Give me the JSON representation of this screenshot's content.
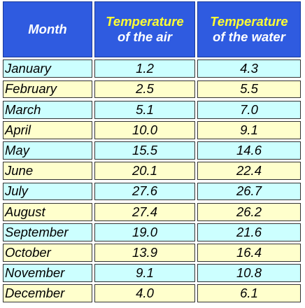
{
  "header": {
    "month": "Month",
    "air_line1": "Temperature",
    "air_line2": "of the air",
    "water_line1": "Temperature",
    "water_line2": "of the water"
  },
  "rows": [
    {
      "month": "January",
      "air": "1.2",
      "water": "4.3"
    },
    {
      "month": "February",
      "air": "2.5",
      "water": "5.5"
    },
    {
      "month": "March",
      "air": "5.1",
      "water": "7.0"
    },
    {
      "month": "April",
      "air": "10.0",
      "water": "9.1"
    },
    {
      "month": "May",
      "air": "15.5",
      "water": "14.6"
    },
    {
      "month": "June",
      "air": "20.1",
      "water": "22.4"
    },
    {
      "month": "July",
      "air": "27.6",
      "water": "26.7"
    },
    {
      "month": "August",
      "air": "27.4",
      "water": "26.2"
    },
    {
      "month": "September",
      "air": "19.0",
      "water": "21.6"
    },
    {
      "month": "October",
      "air": "13.9",
      "water": "16.4"
    },
    {
      "month": "November",
      "air": "9.1",
      "water": "10.8"
    },
    {
      "month": "December",
      "air": "4.0",
      "water": "6.1"
    }
  ],
  "colors": {
    "header_bg": "#2f5be0",
    "header_accent": "#ffff33",
    "row_odd": "#ccffff",
    "row_even": "#ffffcc"
  }
}
